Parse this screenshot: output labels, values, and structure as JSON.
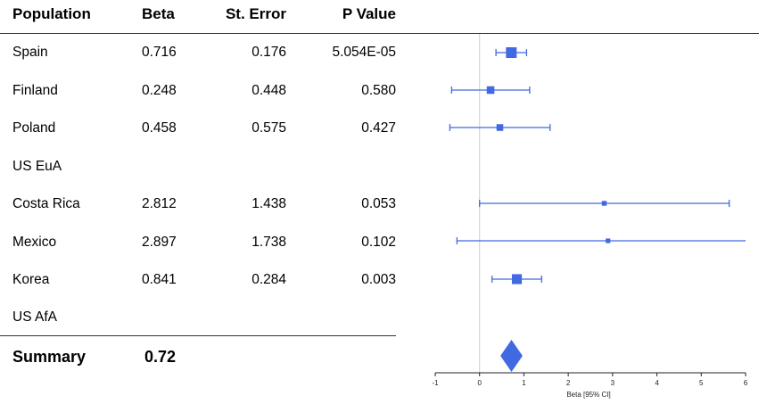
{
  "table": {
    "headers": [
      "Population",
      "Beta",
      "St. Error",
      "P Value"
    ],
    "rows": [
      {
        "population": "Spain",
        "beta": "0.716",
        "se": "0.176",
        "p": "5.054E-05"
      },
      {
        "population": "Finland",
        "beta": "0.248",
        "se": "0.448",
        "p": "0.580"
      },
      {
        "population": "Poland",
        "beta": "0.458",
        "se": "0.575",
        "p": "0.427"
      },
      {
        "population": "US EuA",
        "beta": "",
        "se": "",
        "p": ""
      },
      {
        "population": "Costa Rica",
        "beta": "2.812",
        "se": "1.438",
        "p": "0.053"
      },
      {
        "population": "Mexico",
        "beta": "2.897",
        "se": "1.738",
        "p": "0.102"
      },
      {
        "population": "Korea",
        "beta": "0.841",
        "se": "0.284",
        "p": "0.003"
      },
      {
        "population": "US AfA",
        "beta": "",
        "se": "",
        "p": ""
      }
    ],
    "summary": {
      "label": "Summary",
      "beta": "0.72"
    }
  },
  "chart_data": {
    "type": "forest",
    "xlabel": "Beta [95% CI]",
    "xlim": [
      -1,
      6
    ],
    "xticks": [
      "-1",
      "0",
      "1",
      "2",
      "3",
      "4",
      "5",
      "6"
    ],
    "reference_line": 0,
    "marker_color": "#4169e1",
    "studies": [
      {
        "label": "Spain",
        "beta": 0.716,
        "lower": 0.37,
        "upper": 1.06
      },
      {
        "label": "Finland",
        "beta": 0.248,
        "lower": -0.63,
        "upper": 1.13
      },
      {
        "label": "Poland",
        "beta": 0.458,
        "lower": -0.67,
        "upper": 1.59
      },
      {
        "label": "US EuA",
        "beta": null,
        "lower": null,
        "upper": null
      },
      {
        "label": "Costa Rica",
        "beta": 2.812,
        "lower": 0.0,
        "upper": 5.63
      },
      {
        "label": "Mexico",
        "beta": 2.897,
        "lower": -0.51,
        "upper": 6.3
      },
      {
        "label": "Korea",
        "beta": 0.841,
        "lower": 0.28,
        "upper": 1.4
      },
      {
        "label": "US AfA",
        "beta": null,
        "lower": null,
        "upper": null
      }
    ],
    "summary": {
      "beta": 0.72,
      "lower": 0.47,
      "upper": 0.97
    }
  }
}
